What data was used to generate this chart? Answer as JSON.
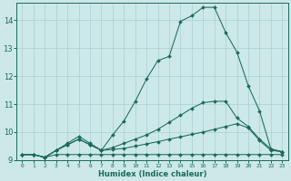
{
  "xlabel": "Humidex (Indice chaleur)",
  "bg_color": "#cce8e8",
  "grid_color": "#aacfcf",
  "line_color": "#1a6b5a",
  "xlim": [
    -0.5,
    23.5
  ],
  "ylim": [
    9.0,
    14.6
  ],
  "yticks": [
    9,
    10,
    11,
    12,
    13,
    14
  ],
  "xticks": [
    0,
    1,
    2,
    3,
    4,
    5,
    6,
    7,
    8,
    9,
    10,
    11,
    12,
    13,
    14,
    15,
    16,
    17,
    18,
    19,
    20,
    21,
    22,
    23
  ],
  "lines": [
    {
      "x": [
        0,
        1,
        2,
        3,
        4,
        5,
        6,
        7,
        8,
        9,
        10,
        11,
        12,
        13,
        14,
        15,
        16,
        17,
        18,
        19,
        20,
        21,
        22,
        23
      ],
      "y": [
        9.2,
        9.2,
        9.1,
        9.2,
        9.2,
        9.2,
        9.2,
        9.2,
        9.2,
        9.2,
        9.2,
        9.2,
        9.2,
        9.2,
        9.2,
        9.2,
        9.2,
        9.2,
        9.2,
        9.2,
        9.2,
        9.2,
        9.2,
        9.2
      ]
    },
    {
      "x": [
        0,
        1,
        2,
        3,
        4,
        5,
        6,
        7,
        8,
        9,
        10,
        11,
        12,
        13,
        14,
        15,
        16,
        17,
        18,
        19,
        20,
        21,
        22,
        23
      ],
      "y": [
        9.2,
        9.2,
        9.1,
        9.35,
        9.55,
        9.75,
        9.55,
        9.35,
        9.38,
        9.42,
        9.5,
        9.58,
        9.66,
        9.75,
        9.83,
        9.92,
        10.0,
        10.1,
        10.2,
        10.3,
        10.15,
        9.7,
        9.35,
        9.3
      ]
    },
    {
      "x": [
        0,
        1,
        2,
        3,
        4,
        5,
        6,
        7,
        8,
        9,
        10,
        11,
        12,
        13,
        14,
        15,
        16,
        17,
        18,
        19,
        20,
        21,
        22,
        23
      ],
      "y": [
        9.2,
        9.2,
        9.1,
        9.35,
        9.55,
        9.75,
        9.55,
        9.35,
        9.45,
        9.6,
        9.75,
        9.9,
        10.1,
        10.35,
        10.6,
        10.85,
        11.05,
        11.1,
        11.1,
        10.5,
        10.2,
        9.75,
        9.4,
        9.3
      ]
    },
    {
      "x": [
        0,
        1,
        2,
        3,
        4,
        5,
        6,
        7,
        8,
        9,
        10,
        11,
        12,
        13,
        14,
        15,
        16,
        17,
        18,
        19,
        20,
        21,
        22,
        23
      ],
      "y": [
        9.2,
        9.2,
        9.1,
        9.35,
        9.6,
        9.85,
        9.6,
        9.35,
        9.9,
        10.4,
        11.1,
        11.9,
        12.55,
        12.7,
        13.95,
        14.15,
        14.45,
        14.45,
        13.55,
        12.85,
        11.65,
        10.75,
        9.4,
        9.3
      ]
    }
  ]
}
